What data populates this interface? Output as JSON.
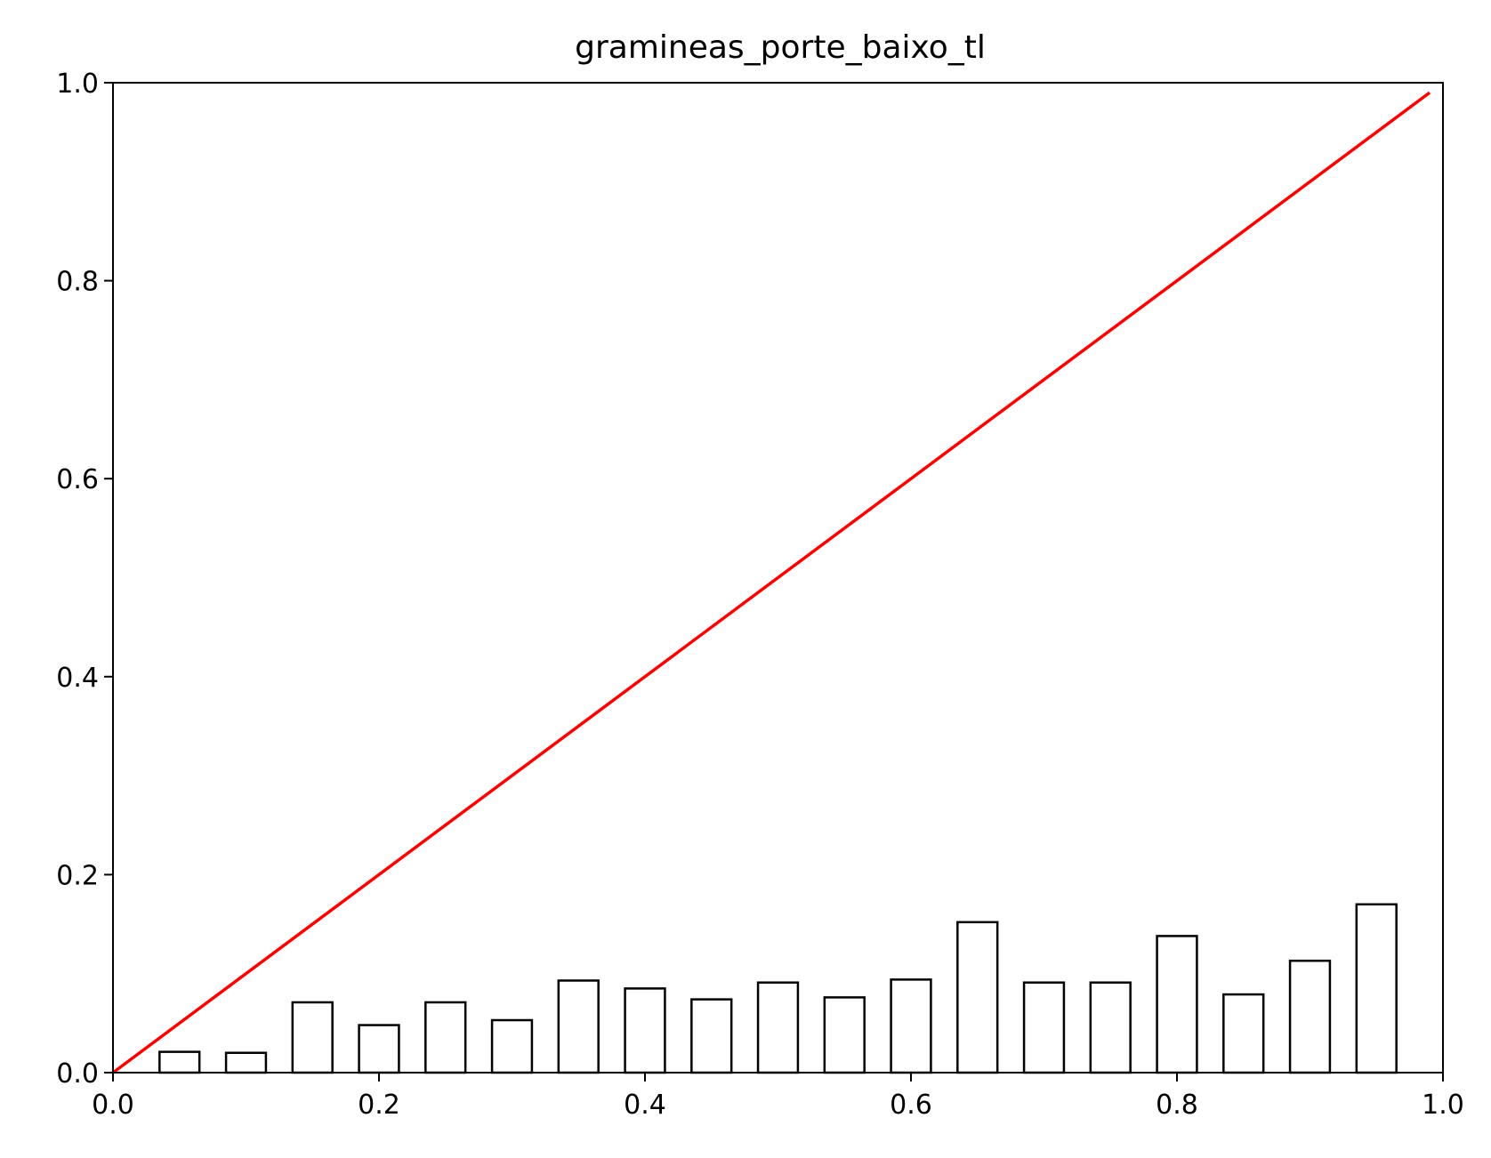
{
  "chart_data": {
    "type": "bar",
    "title": "gramineas_porte_baixo_tl",
    "xlabel": "",
    "ylabel": "",
    "xlim": [
      0.0,
      1.0
    ],
    "ylim": [
      0.0,
      1.0
    ],
    "x_ticks": [
      "0.0",
      "0.2",
      "0.4",
      "0.6",
      "0.8",
      "1.0"
    ],
    "y_ticks": [
      "0.0",
      "0.2",
      "0.4",
      "0.6",
      "0.8",
      "1.0"
    ],
    "grid": false,
    "bars": {
      "x": [
        0.05,
        0.1,
        0.15,
        0.2,
        0.25,
        0.3,
        0.35,
        0.4,
        0.45,
        0.5,
        0.55,
        0.6,
        0.65,
        0.7,
        0.75,
        0.8,
        0.85,
        0.9,
        0.95
      ],
      "width": 0.03,
      "values": [
        0.021,
        0.02,
        0.071,
        0.048,
        0.071,
        0.053,
        0.093,
        0.085,
        0.074,
        0.091,
        0.076,
        0.094,
        0.152,
        0.091,
        0.091,
        0.138,
        0.079,
        0.113,
        0.17
      ],
      "fill": "#ffffff",
      "edge": "#000000"
    },
    "line": {
      "x": [
        0.0,
        0.99
      ],
      "y": [
        0.0,
        0.99
      ],
      "color": "#ff0000"
    }
  }
}
